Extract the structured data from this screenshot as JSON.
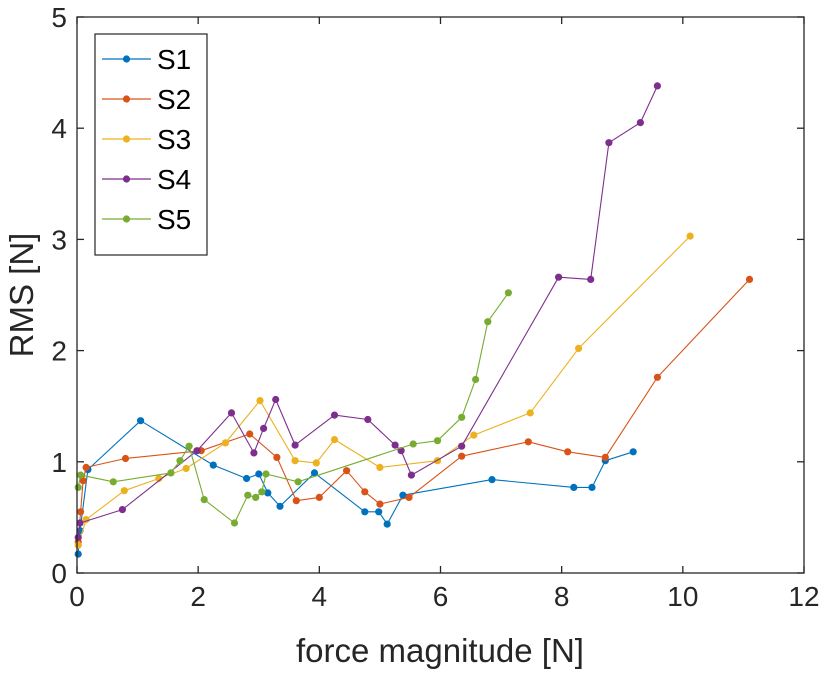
{
  "chart_data": {
    "type": "line",
    "title": "",
    "xlabel": "force magnitude [N]",
    "ylabel": "RMS [N]",
    "xlim": [
      0,
      12
    ],
    "ylim": [
      0,
      5
    ],
    "xticks": [
      "0",
      "2",
      "4",
      "6",
      "8",
      "10",
      "12"
    ],
    "yticks": [
      "0",
      "1",
      "2",
      "3",
      "4",
      "5"
    ],
    "grid": false,
    "legend_position": "top-left",
    "series": [
      {
        "name": "S1",
        "color": "#0072BD",
        "points": [
          [
            0.02,
            0.17
          ],
          [
            0.05,
            0.38
          ],
          [
            0.18,
            0.93
          ],
          [
            1.05,
            1.37
          ],
          [
            2.25,
            0.97
          ],
          [
            2.8,
            0.85
          ],
          [
            3.0,
            0.89
          ],
          [
            3.15,
            0.72
          ],
          [
            3.35,
            0.6
          ],
          [
            3.92,
            0.9
          ],
          [
            4.75,
            0.55
          ],
          [
            4.98,
            0.55
          ],
          [
            5.12,
            0.44
          ],
          [
            5.38,
            0.7
          ],
          [
            6.85,
            0.84
          ],
          [
            8.2,
            0.77
          ],
          [
            8.5,
            0.77
          ],
          [
            8.72,
            1.01
          ],
          [
            9.18,
            1.09
          ]
        ]
      },
      {
        "name": "S2",
        "color": "#D95319",
        "points": [
          [
            0.02,
            0.28
          ],
          [
            0.06,
            0.55
          ],
          [
            0.1,
            0.83
          ],
          [
            0.15,
            0.95
          ],
          [
            0.8,
            1.03
          ],
          [
            2.05,
            1.1
          ],
          [
            2.85,
            1.25
          ],
          [
            3.3,
            1.04
          ],
          [
            3.62,
            0.65
          ],
          [
            4.0,
            0.68
          ],
          [
            4.45,
            0.92
          ],
          [
            4.75,
            0.73
          ],
          [
            5.0,
            0.62
          ],
          [
            5.48,
            0.68
          ],
          [
            6.35,
            1.05
          ],
          [
            7.45,
            1.18
          ],
          [
            8.1,
            1.09
          ],
          [
            8.72,
            1.04
          ],
          [
            9.58,
            1.76
          ],
          [
            11.1,
            2.64
          ]
        ]
      },
      {
        "name": "S3",
        "color": "#EDB120",
        "points": [
          [
            0.02,
            0.25
          ],
          [
            0.15,
            0.48
          ],
          [
            0.78,
            0.74
          ],
          [
            1.35,
            0.85
          ],
          [
            1.8,
            0.94
          ],
          [
            2.45,
            1.17
          ],
          [
            3.02,
            1.55
          ],
          [
            3.6,
            1.01
          ],
          [
            3.95,
            0.99
          ],
          [
            4.25,
            1.2
          ],
          [
            5.0,
            0.95
          ],
          [
            5.95,
            1.01
          ],
          [
            6.55,
            1.24
          ],
          [
            7.48,
            1.44
          ],
          [
            8.28,
            2.02
          ],
          [
            10.12,
            3.03
          ]
        ]
      },
      {
        "name": "S4",
        "color": "#7E2F8E",
        "points": [
          [
            0.02,
            0.32
          ],
          [
            0.05,
            0.45
          ],
          [
            0.75,
            0.57
          ],
          [
            1.98,
            1.1
          ],
          [
            2.55,
            1.44
          ],
          [
            2.92,
            1.08
          ],
          [
            3.08,
            1.3
          ],
          [
            3.28,
            1.56
          ],
          [
            3.6,
            1.15
          ],
          [
            4.25,
            1.42
          ],
          [
            4.8,
            1.38
          ],
          [
            5.25,
            1.15
          ],
          [
            5.35,
            1.1
          ],
          [
            5.52,
            0.88
          ],
          [
            6.35,
            1.14
          ],
          [
            7.95,
            2.66
          ],
          [
            8.48,
            2.64
          ],
          [
            8.78,
            3.87
          ],
          [
            9.3,
            4.05
          ],
          [
            9.58,
            4.38
          ]
        ]
      },
      {
        "name": "S5",
        "color": "#77AC30",
        "points": [
          [
            0.02,
            0.77
          ],
          [
            0.06,
            0.88
          ],
          [
            0.6,
            0.82
          ],
          [
            1.55,
            0.9
          ],
          [
            1.7,
            1.01
          ],
          [
            1.85,
            1.14
          ],
          [
            2.1,
            0.66
          ],
          [
            2.6,
            0.45
          ],
          [
            2.82,
            0.7
          ],
          [
            2.95,
            0.68
          ],
          [
            3.05,
            0.73
          ],
          [
            3.12,
            0.89
          ],
          [
            3.65,
            0.82
          ],
          [
            5.55,
            1.16
          ],
          [
            5.95,
            1.19
          ],
          [
            6.35,
            1.4
          ],
          [
            6.58,
            1.74
          ],
          [
            6.78,
            2.26
          ],
          [
            7.12,
            2.52
          ]
        ]
      }
    ]
  }
}
